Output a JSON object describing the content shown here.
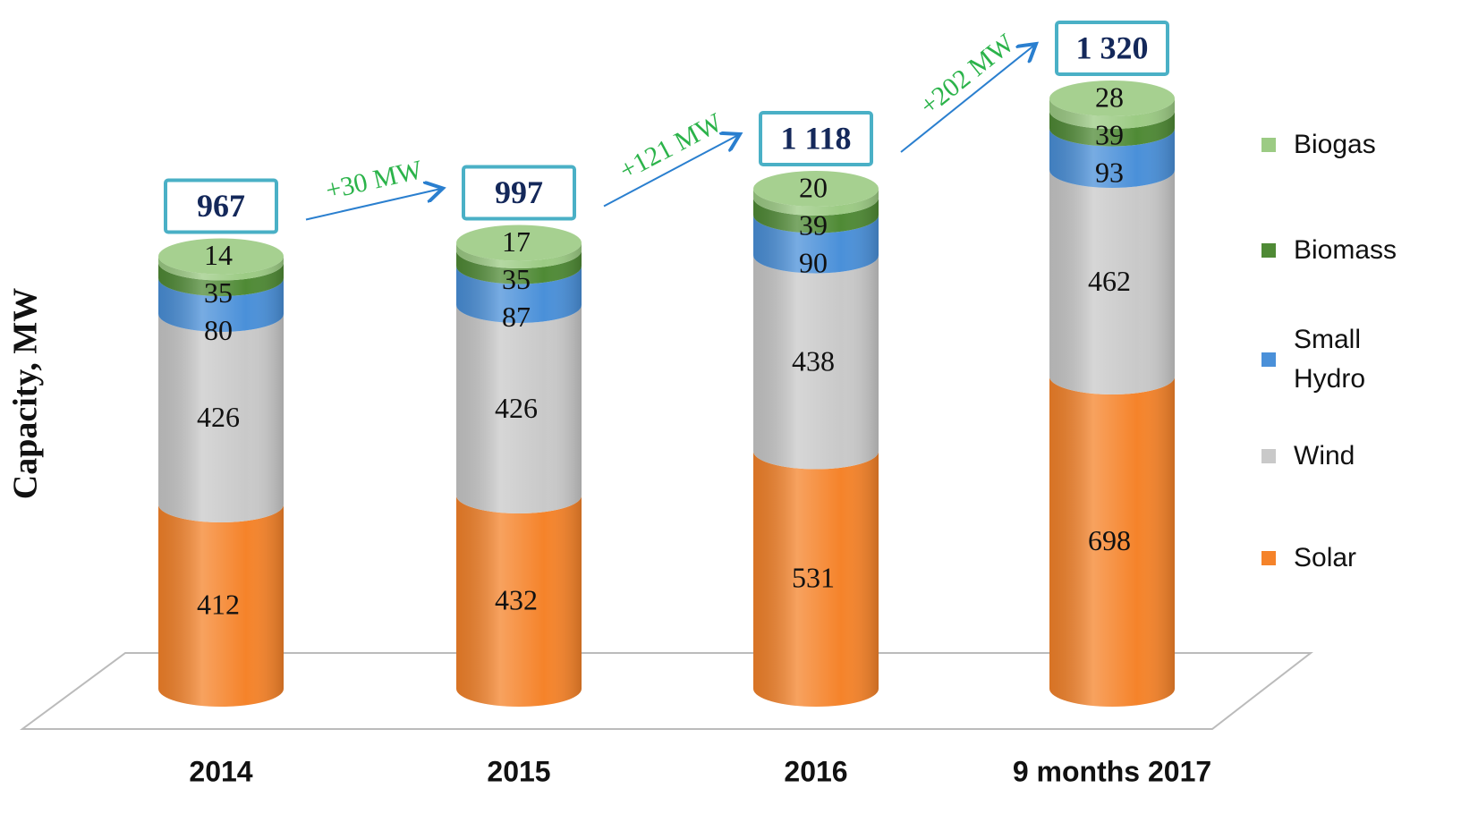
{
  "chart_data": {
    "type": "stacked_cylinder",
    "y_axis_label": "Capacity, MW",
    "categories": [
      "2014",
      "2015",
      "2016",
      "9 months 2017"
    ],
    "series": [
      {
        "name": "Solar",
        "color": "#f5832a",
        "values": [
          412,
          432,
          531,
          698
        ]
      },
      {
        "name": "Wind",
        "color": "#c9c9c9",
        "values": [
          426,
          426,
          438,
          462
        ]
      },
      {
        "name": "Small Hydro",
        "color": "#4a90d9",
        "values": [
          80,
          87,
          90,
          93
        ]
      },
      {
        "name": "Biomass",
        "color": "#4f8a35",
        "values": [
          35,
          35,
          39,
          39
        ]
      },
      {
        "name": "Biogas",
        "color": "#9ccb84",
        "values": [
          14,
          17,
          20,
          28
        ]
      }
    ],
    "totals": {
      "values": [
        967,
        997,
        1118,
        1320
      ],
      "value_labels": [
        "967",
        "997",
        "1 118",
        "1 320"
      ]
    },
    "annotations": [
      "+30 MW",
      "+121 MW",
      "+202 MW"
    ]
  }
}
